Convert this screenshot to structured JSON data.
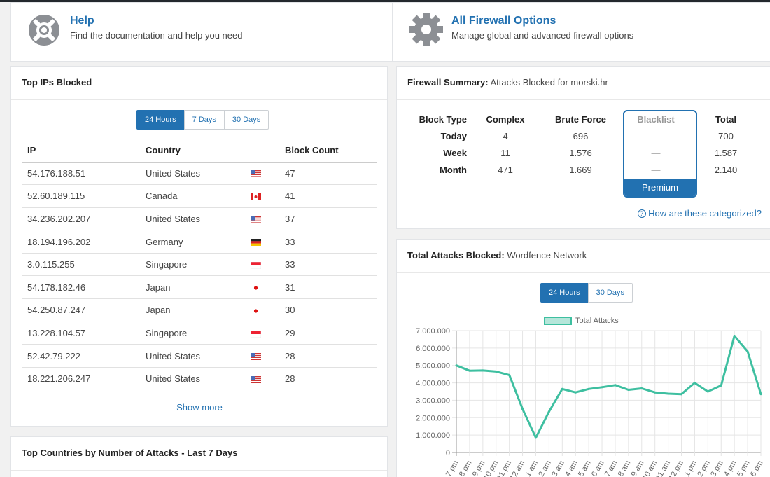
{
  "help": {
    "title": "Help",
    "subtitle": "Find the documentation and help you need"
  },
  "firewall_options": {
    "title": "All Firewall Options",
    "subtitle": "Manage global and advanced firewall options"
  },
  "top_ips": {
    "title": "Top IPs Blocked",
    "tabs": [
      "24 Hours",
      "7 Days",
      "30 Days"
    ],
    "active_tab": "24 Hours",
    "columns": [
      "IP",
      "Country",
      "Block Count"
    ],
    "rows": [
      {
        "ip": "54.176.188.51",
        "country": "United States",
        "flag": "us-flag-icon",
        "count": "47"
      },
      {
        "ip": "52.60.189.115",
        "country": "Canada",
        "flag": "ca-flag-icon",
        "count": "41"
      },
      {
        "ip": "34.236.202.207",
        "country": "United States",
        "flag": "us-flag-icon",
        "count": "37"
      },
      {
        "ip": "18.194.196.202",
        "country": "Germany",
        "flag": "de-flag-icon",
        "count": "33"
      },
      {
        "ip": "3.0.115.255",
        "country": "Singapore",
        "flag": "sg-flag-icon",
        "count": "33"
      },
      {
        "ip": "54.178.182.46",
        "country": "Japan",
        "flag": "jp-flag-icon",
        "count": "31"
      },
      {
        "ip": "54.250.87.247",
        "country": "Japan",
        "flag": "jp-flag-icon",
        "count": "30"
      },
      {
        "ip": "13.228.104.57",
        "country": "Singapore",
        "flag": "sg-flag-icon",
        "count": "29"
      },
      {
        "ip": "52.42.79.222",
        "country": "United States",
        "flag": "us-flag-icon",
        "count": "28"
      },
      {
        "ip": "18.221.206.247",
        "country": "United States",
        "flag": "us-flag-icon",
        "count": "28"
      }
    ],
    "show_more": "Show more"
  },
  "top_countries": {
    "title": "Top Countries by Number of Attacks - Last 7 Days"
  },
  "firewall_summary": {
    "title_bold": "Firewall Summary:",
    "title_rest": " Attacks Blocked for morski.hr",
    "columns": [
      "Block Type",
      "Complex",
      "Brute Force",
      "Blacklist",
      "Total"
    ],
    "rows": [
      {
        "label": "Today",
        "complex": "4",
        "brute": "696",
        "blacklist": "—",
        "total": "700"
      },
      {
        "label": "Week",
        "complex": "11",
        "brute": "1.576",
        "blacklist": "—",
        "total": "1.587"
      },
      {
        "label": "Month",
        "complex": "471",
        "brute": "1.669",
        "blacklist": "—",
        "total": "2.140"
      }
    ],
    "premium_label": "Premium",
    "help_link": "How are these categorized?"
  },
  "total_attacks": {
    "title_bold": "Total Attacks Blocked:",
    "title_rest": " Wordfence Network",
    "tabs": [
      "24 Hours",
      "30 Days"
    ],
    "active_tab": "24 Hours"
  },
  "colors": {
    "accent": "#2271b1",
    "line": "#3ebfa0",
    "fill": "#b5e6da"
  },
  "chart_data": {
    "type": "line",
    "legend": [
      "Total Attacks"
    ],
    "x": [
      "7 pm",
      "8 pm",
      "9 pm",
      "10 pm",
      "11 pm",
      "12 am",
      "1 am",
      "2 am",
      "3 am",
      "4 am",
      "5 am",
      "6 am",
      "7 am",
      "8 am",
      "9 am",
      "10 am",
      "11 am",
      "12 pm",
      "1 pm",
      "2 pm",
      "3 pm",
      "4 pm",
      "5 pm",
      "6 pm"
    ],
    "series": [
      {
        "name": "Total Attacks",
        "values": [
          5000000,
          4700000,
          4710000,
          4650000,
          4450000,
          2500000,
          850000,
          2350000,
          3650000,
          3450000,
          3650000,
          3750000,
          3870000,
          3600000,
          3680000,
          3450000,
          3380000,
          3350000,
          4000000,
          3500000,
          3850000,
          6700000,
          5800000,
          3350000
        ]
      }
    ],
    "yticks": [
      "7.000.000",
      "6.000.000",
      "5.000.000",
      "4.000.000",
      "3.000.000",
      "2.000.000",
      "1.000.000",
      "0"
    ],
    "ylim": [
      0,
      7000000
    ],
    "grid": true,
    "legend_position": "top"
  }
}
